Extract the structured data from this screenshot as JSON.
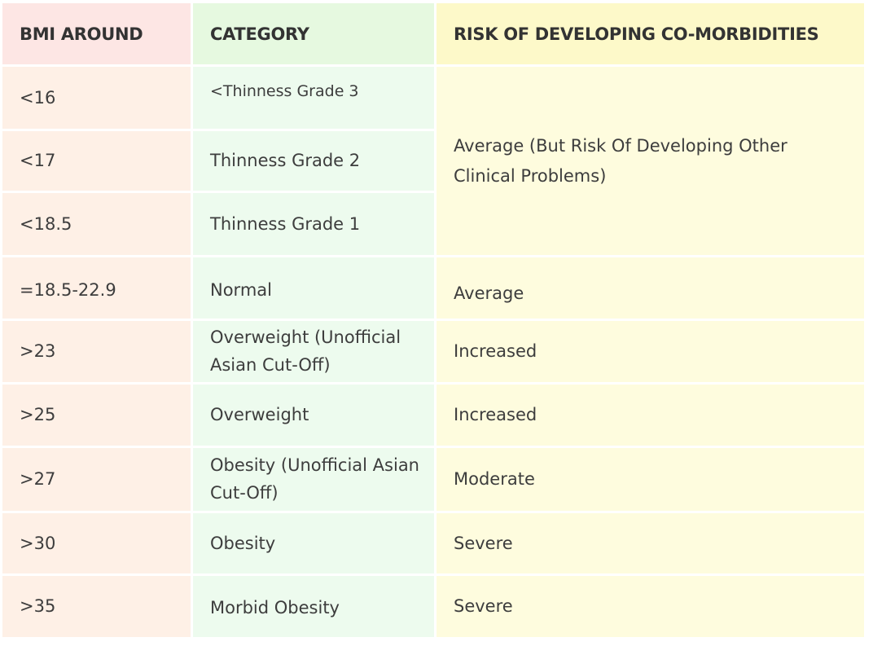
{
  "table": {
    "headers": [
      "BMI AROUND",
      "CATEGORY",
      "RISK OF DEVELOPING CO-MORBIDITIES"
    ],
    "rows": [
      {
        "bmi": "<16",
        "category": "<Thinness Grade 3",
        "risk": "Average (But Risk Of Developing Other Clinical Problems)",
        "risk_rowspan": 3
      },
      {
        "bmi": "<17",
        "category": "Thinness Grade 2"
      },
      {
        "bmi": "<18.5",
        "category": "Thinness Grade 1"
      },
      {
        "bmi": "=18.5-22.9",
        "category": "Normal",
        "risk": "Average"
      },
      {
        "bmi": ">23",
        "category": "Overweight (Unofficial Asian Cut-Off)",
        "risk": "Increased"
      },
      {
        "bmi": ">25",
        "category": "Overweight",
        "risk": "Increased"
      },
      {
        "bmi": ">27",
        "category": "Obesity (Unofficial Asian Cut-Off)",
        "risk": "Moderate"
      },
      {
        "bmi": ">30",
        "category": "Obesity",
        "risk": "Severe"
      },
      {
        "bmi": ">35",
        "category": "Morbid Obesity",
        "risk": "Severe"
      }
    ],
    "colors": {
      "bmi_header": "#fde6e4",
      "bmi_cell": "#fef0e6",
      "category_header": "#e6f9e0",
      "category_cell": "#edfbee",
      "risk_header": "#fdf9c9",
      "risk_cell": "#fefcde"
    }
  }
}
